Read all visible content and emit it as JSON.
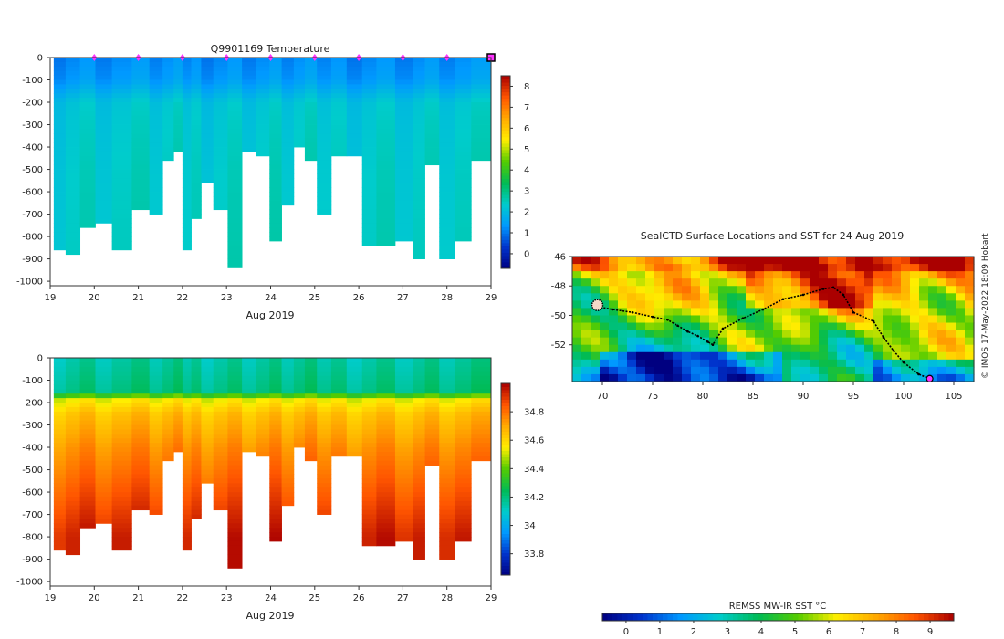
{
  "chart_data": [
    {
      "type": "heatmap",
      "title": "Q9901169  Temperature",
      "xlabel": "Aug 2019",
      "x_ticks": [
        "19",
        "20",
        "21",
        "22",
        "23",
        "24",
        "25",
        "26",
        "27",
        "28",
        "29"
      ],
      "x_range": [
        19,
        29
      ],
      "y_ticks": [
        "0",
        "-100",
        "-200",
        "-300",
        "-400",
        "-500",
        "-600",
        "-700",
        "-800",
        "-900",
        "-1000"
      ],
      "ylim": [
        -1020,
        0
      ],
      "colorbar": {
        "ticks": [
          "0",
          "1",
          "2",
          "3",
          "4",
          "5",
          "6",
          "7",
          "8"
        ],
        "values": [
          0,
          1,
          2,
          3,
          4,
          5,
          6,
          7,
          8
        ],
        "range": [
          -0.7,
          8.5
        ]
      },
      "colormap": [
        "#000080",
        "#0033cc",
        "#0099ff",
        "#00cccc",
        "#00bb55",
        "#55cc00",
        "#ffee00",
        "#ffaa00",
        "#ff5500",
        "#aa0000"
      ],
      "surface_marker_days": [
        20,
        21,
        22,
        23,
        24,
        25,
        26,
        27,
        28
      ],
      "current_day": 29,
      "profiles": [
        {
          "day": 19.2,
          "max_depth": 850
        },
        {
          "day": 19.5,
          "max_depth": 870
        },
        {
          "day": 19.85,
          "max_depth": 750
        },
        {
          "day": 20.2,
          "max_depth": 730
        },
        {
          "day": 20.6,
          "max_depth": 860
        },
        {
          "day": 21.1,
          "max_depth": 680
        },
        {
          "day": 21.4,
          "max_depth": 700
        },
        {
          "day": 21.7,
          "max_depth": 455
        },
        {
          "day": 21.9,
          "max_depth": 410
        },
        {
          "day": 22.1,
          "max_depth": 860
        },
        {
          "day": 22.3,
          "max_depth": 710
        },
        {
          "day": 22.55,
          "max_depth": 560
        },
        {
          "day": 22.85,
          "max_depth": 665
        },
        {
          "day": 23.2,
          "max_depth": 925
        },
        {
          "day": 23.5,
          "max_depth": 415
        },
        {
          "day": 23.85,
          "max_depth": 425
        },
        {
          "day": 24.1,
          "max_depth": 815
        },
        {
          "day": 24.4,
          "max_depth": 660
        },
        {
          "day": 24.65,
          "max_depth": 400
        },
        {
          "day": 24.9,
          "max_depth": 455
        },
        {
          "day": 25.2,
          "max_depth": 700
        },
        {
          "day": 25.55,
          "max_depth": 440
        },
        {
          "day": 25.9,
          "max_depth": 440
        },
        {
          "day": 26.25,
          "max_depth": 840
        },
        {
          "day": 26.55,
          "max_depth": 840
        },
        {
          "day": 27.1,
          "max_depth": 810
        },
        {
          "day": 27.35,
          "max_depth": 885
        },
        {
          "day": 27.65,
          "max_depth": 470
        },
        {
          "day": 28.0,
          "max_depth": 900
        },
        {
          "day": 28.35,
          "max_depth": 815
        },
        {
          "day": 28.75,
          "max_depth": 460
        }
      ],
      "values_by_depth": [
        {
          "depth": 0,
          "value": 1.2
        },
        {
          "depth": 100,
          "value": 1.4
        },
        {
          "depth": 200,
          "value": 2.2
        },
        {
          "depth": 300,
          "value": 2.3
        },
        {
          "depth": 500,
          "value": 2.4
        },
        {
          "depth": 900,
          "value": 2.5
        }
      ]
    },
    {
      "type": "heatmap",
      "title": "",
      "xlabel": "Aug 2019",
      "x_ticks": [
        "19",
        "20",
        "21",
        "22",
        "23",
        "24",
        "25",
        "26",
        "27",
        "28",
        "29"
      ],
      "x_range": [
        19,
        29
      ],
      "y_ticks": [
        "0",
        "-100",
        "-200",
        "-300",
        "-400",
        "-500",
        "-600",
        "-700",
        "-800",
        "-900",
        "-1000"
      ],
      "ylim": [
        -1020,
        0
      ],
      "colorbar": {
        "ticks": [
          "33.8",
          "34",
          "34.2",
          "34.4",
          "34.6",
          "34.8"
        ],
        "values": [
          33.8,
          34.0,
          34.2,
          34.4,
          34.6,
          34.8
        ],
        "range": [
          33.65,
          35.0
        ]
      },
      "colormap": [
        "#000080",
        "#0033cc",
        "#0099ff",
        "#00cccc",
        "#00bb55",
        "#55cc00",
        "#ffee00",
        "#ffaa00",
        "#ff5500",
        "#aa0000"
      ],
      "profiles": "same as temperature",
      "values_by_depth": [
        {
          "depth": 0,
          "value": 34.15
        },
        {
          "depth": 150,
          "value": 34.2
        },
        {
          "depth": 190,
          "value": 34.55
        },
        {
          "depth": 250,
          "value": 34.65
        },
        {
          "depth": 400,
          "value": 34.75
        },
        {
          "depth": 600,
          "value": 34.85
        },
        {
          "depth": 800,
          "value": 34.95
        }
      ]
    },
    {
      "type": "map",
      "title": "SealCTD Surface Locations and SST for 24 Aug 2019",
      "x_ticks": [
        "70",
        "75",
        "80",
        "85",
        "90",
        "95",
        "100",
        "105"
      ],
      "x_range": [
        67,
        107
      ],
      "y_ticks": [
        "-46",
        "-48",
        "-50",
        "-52"
      ],
      "y_range": [
        -54.5,
        -46
      ],
      "colorbar": {
        "label": "REMSS MW-IR SST °C",
        "ticks": [
          "0",
          "1",
          "2",
          "3",
          "4",
          "5",
          "6",
          "7",
          "8",
          "9"
        ],
        "values": [
          0,
          1,
          2,
          3,
          4,
          5,
          6,
          7,
          8,
          9
        ],
        "range": [
          -0.7,
          9.7
        ]
      },
      "track": [
        [
          69.5,
          -49.4
        ],
        [
          71,
          -49.6
        ],
        [
          73,
          -49.8
        ],
        [
          75,
          -50.1
        ],
        [
          76.5,
          -50.3
        ],
        [
          77.5,
          -50.7
        ],
        [
          78.5,
          -51.1
        ],
        [
          79.5,
          -51.4
        ],
        [
          80.5,
          -51.8
        ],
        [
          81,
          -52.0
        ],
        [
          82,
          -50.9
        ],
        [
          84,
          -50.2
        ],
        [
          86,
          -49.6
        ],
        [
          88,
          -48.9
        ],
        [
          90,
          -48.6
        ],
        [
          92,
          -48.2
        ],
        [
          93,
          -48.1
        ],
        [
          94,
          -48.6
        ],
        [
          95,
          -49.8
        ],
        [
          97,
          -50.4
        ],
        [
          98,
          -51.5
        ],
        [
          99,
          -52.4
        ],
        [
          100,
          -53.2
        ],
        [
          101.5,
          -54.0
        ],
        [
          102.6,
          -54.3
        ]
      ],
      "current_position": [
        102.6,
        -54.3
      ],
      "highlight_area": [
        69.5,
        -49.3
      ]
    }
  ],
  "credit": "© IMOS 17-May-2022 18:09 Hobart"
}
